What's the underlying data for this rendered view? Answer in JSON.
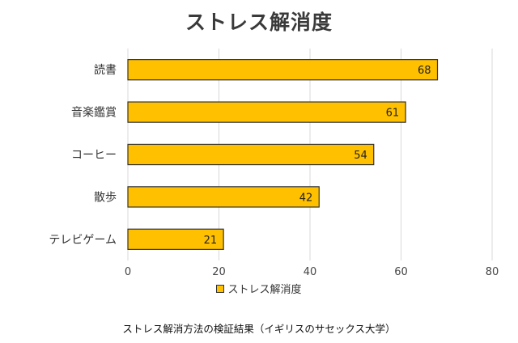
{
  "chart_data": {
    "type": "bar",
    "orientation": "horizontal",
    "title": "ストレス解消度",
    "categories": [
      "読書",
      "音楽鑑賞",
      "コーヒー",
      "散歩",
      "テレビゲーム"
    ],
    "series": [
      {
        "name": "ストレス解消度",
        "values": [
          68,
          61,
          54,
          42,
          21
        ]
      }
    ],
    "xlim": [
      0,
      80
    ],
    "xticks": [
      "0",
      "20",
      "40",
      "60",
      "80"
    ],
    "grid": true,
    "legend": "bottom-center",
    "colors": {
      "bar": "#FFC000",
      "bar_edge": "#333333",
      "grid": "#d9d9d9"
    }
  },
  "caption": "ストレス解消方法の検証結果（イギリスのサセックス大学）"
}
